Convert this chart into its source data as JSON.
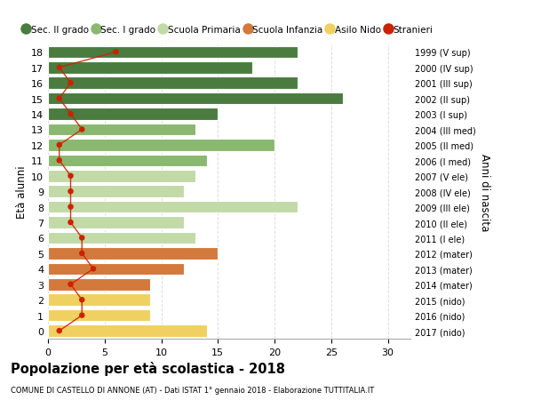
{
  "ages": [
    18,
    17,
    16,
    15,
    14,
    13,
    12,
    11,
    10,
    9,
    8,
    7,
    6,
    5,
    4,
    3,
    2,
    1,
    0
  ],
  "right_labels": [
    "1999 (V sup)",
    "2000 (IV sup)",
    "2001 (III sup)",
    "2002 (II sup)",
    "2003 (I sup)",
    "2004 (III med)",
    "2005 (II med)",
    "2006 (I med)",
    "2007 (V ele)",
    "2008 (IV ele)",
    "2009 (III ele)",
    "2010 (II ele)",
    "2011 (I ele)",
    "2012 (mater)",
    "2013 (mater)",
    "2014 (mater)",
    "2015 (nido)",
    "2016 (nido)",
    "2017 (nido)"
  ],
  "bar_values": [
    22,
    18,
    22,
    26,
    15,
    13,
    20,
    14,
    13,
    12,
    22,
    12,
    13,
    15,
    12,
    9,
    9,
    9,
    14
  ],
  "bar_colors": [
    "#4a7c3f",
    "#4a7c3f",
    "#4a7c3f",
    "#4a7c3f",
    "#4a7c3f",
    "#8ab870",
    "#8ab870",
    "#8ab870",
    "#c2d9a8",
    "#c2d9a8",
    "#c2d9a8",
    "#c2d9a8",
    "#c2d9a8",
    "#d4793c",
    "#d4793c",
    "#d4793c",
    "#f0d060",
    "#f0d060",
    "#f0d060"
  ],
  "stranieri_values": [
    6,
    1,
    2,
    1,
    2,
    3,
    1,
    1,
    2,
    2,
    2,
    2,
    3,
    3,
    4,
    2,
    3,
    3,
    1
  ],
  "legend_labels": [
    "Sec. II grado",
    "Sec. I grado",
    "Scuola Primaria",
    "Scuola Infanzia",
    "Asilo Nido",
    "Stranieri"
  ],
  "legend_colors": [
    "#4a7c3f",
    "#8ab870",
    "#c2d9a8",
    "#d4793c",
    "#f0d060",
    "#cc2200"
  ],
  "title": "Popolazione per età scolastica - 2018",
  "subtitle": "COMUNE DI CASTELLO DI ANNONE (AT) - Dati ISTAT 1° gennaio 2018 - Elaborazione TUTTITALIA.IT",
  "ylabel_left": "Età alunni",
  "ylabel_right": "Anni di nascita",
  "stranieri_color": "#cc2200",
  "background_color": "#ffffff",
  "grid_color": "#dddddd"
}
